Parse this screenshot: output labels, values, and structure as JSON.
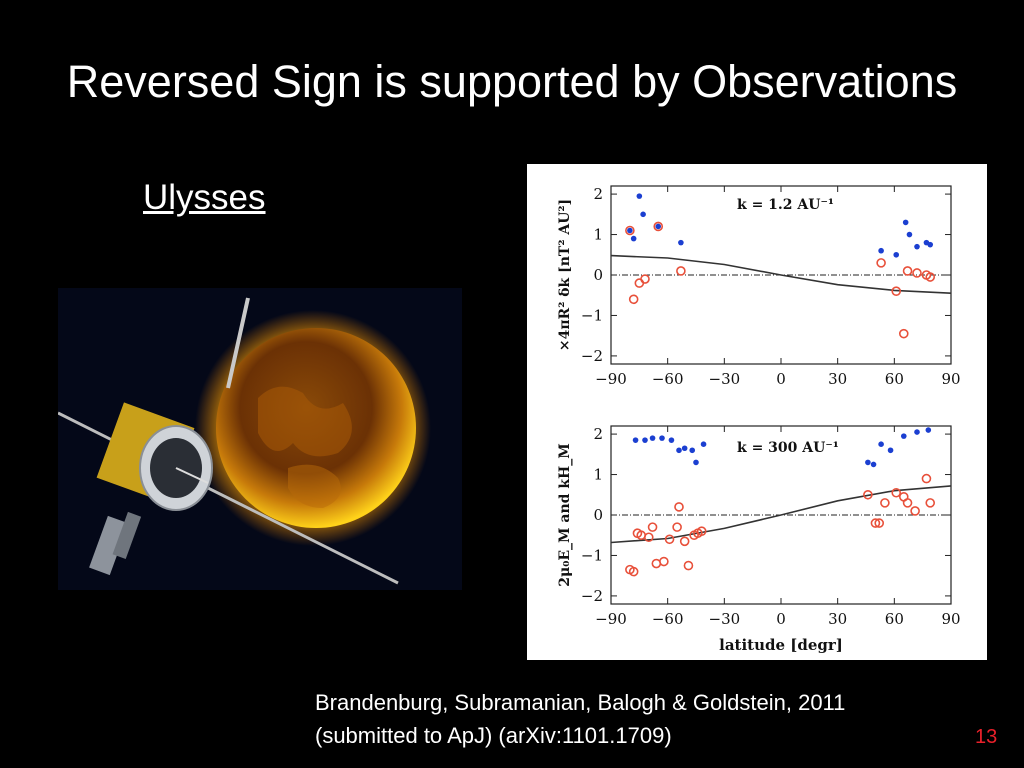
{
  "slide": {
    "title": "Reversed Sign is supported by Observations",
    "subtitle": "Ulysses",
    "citation_line1": "Brandenburg, Subramanian, Balogh & Goldstein, 2011",
    "citation_line2": "(submitted to ApJ) (arXiv:1101.1709)",
    "page_number": "13"
  },
  "image": {
    "description_icon": "ulysses-spacecraft-and-sun-icon"
  },
  "colors": {
    "filled": "#1b3fd1",
    "open": "#e8503a",
    "curve": "#333333"
  },
  "chart_data": [
    {
      "type": "scatter",
      "annotation": "k = 1.2 AU⁻¹",
      "ylabel": "×4πR² δk [nT² AU²]",
      "xlabel": "",
      "xlim": [
        -90,
        90
      ],
      "ylim": [
        -2.2,
        2.2
      ],
      "xticks": [
        "−90",
        "−60",
        "−30",
        "0",
        "30",
        "60",
        "90"
      ],
      "yticks": [
        "2",
        "1",
        "0",
        "−1",
        "−2"
      ],
      "filled_points": [
        [
          -80,
          1.1
        ],
        [
          -78,
          0.9
        ],
        [
          -75,
          1.95
        ],
        [
          -73,
          1.5
        ],
        [
          -65,
          1.2
        ],
        [
          -53,
          0.8
        ],
        [
          53,
          0.6
        ],
        [
          61,
          0.5
        ],
        [
          66,
          1.3
        ],
        [
          68,
          1.0
        ],
        [
          72,
          0.7
        ],
        [
          77,
          0.8
        ],
        [
          79,
          0.75
        ]
      ],
      "open_points": [
        [
          -80,
          1.1
        ],
        [
          -78,
          -0.6
        ],
        [
          -75,
          -0.2
        ],
        [
          -72,
          -0.1
        ],
        [
          -65,
          1.2
        ],
        [
          -53,
          0.1
        ],
        [
          53,
          0.3
        ],
        [
          61,
          -0.4
        ],
        [
          65,
          -1.45
        ],
        [
          67,
          0.1
        ],
        [
          72,
          0.05
        ],
        [
          77,
          0.0
        ],
        [
          79,
          -0.05
        ]
      ],
      "curve": [
        [
          -90,
          0.48
        ],
        [
          -60,
          0.42
        ],
        [
          -30,
          0.26
        ],
        [
          0,
          0.0
        ],
        [
          30,
          -0.24
        ],
        [
          60,
          -0.38
        ],
        [
          90,
          -0.45
        ]
      ]
    },
    {
      "type": "scatter",
      "annotation": "k = 300 AU⁻¹",
      "ylabel": "2μ₀E_M and kH_M",
      "xlabel": "latitude [degr]",
      "xlim": [
        -90,
        90
      ],
      "ylim": [
        -2.2,
        2.2
      ],
      "xticks": [
        "−90",
        "−60",
        "−30",
        "0",
        "30",
        "60",
        "90"
      ],
      "yticks": [
        "2",
        "1",
        "0",
        "−1",
        "−2"
      ],
      "filled_points": [
        [
          -77,
          1.85
        ],
        [
          -72,
          1.85
        ],
        [
          -68,
          1.9
        ],
        [
          -63,
          1.9
        ],
        [
          -58,
          1.85
        ],
        [
          -54,
          1.6
        ],
        [
          -51,
          1.65
        ],
        [
          -47,
          1.6
        ],
        [
          -45,
          1.3
        ],
        [
          -41,
          1.75
        ],
        [
          46,
          1.3
        ],
        [
          49,
          1.25
        ],
        [
          53,
          1.75
        ],
        [
          58,
          1.6
        ],
        [
          65,
          1.95
        ],
        [
          72,
          2.05
        ],
        [
          78,
          2.1
        ]
      ],
      "open_points": [
        [
          -80,
          -1.35
        ],
        [
          -78,
          -1.4
        ],
        [
          -76,
          -0.45
        ],
        [
          -74,
          -0.5
        ],
        [
          -70,
          -0.55
        ],
        [
          -68,
          -0.3
        ],
        [
          -66,
          -1.2
        ],
        [
          -62,
          -1.15
        ],
        [
          -59,
          -0.6
        ],
        [
          -55,
          -0.3
        ],
        [
          -54,
          0.2
        ],
        [
          -51,
          -0.65
        ],
        [
          -49,
          -1.25
        ],
        [
          -46,
          -0.5
        ],
        [
          -44,
          -0.45
        ],
        [
          -42,
          -0.4
        ],
        [
          46,
          0.5
        ],
        [
          50,
          -0.2
        ],
        [
          52,
          -0.2
        ],
        [
          55,
          0.3
        ],
        [
          61,
          0.55
        ],
        [
          65,
          0.45
        ],
        [
          67,
          0.3
        ],
        [
          71,
          0.1
        ],
        [
          77,
          0.9
        ],
        [
          79,
          0.3
        ]
      ],
      "curve": [
        [
          -90,
          -0.68
        ],
        [
          -60,
          -0.58
        ],
        [
          -30,
          -0.33
        ],
        [
          0,
          0.0
        ],
        [
          30,
          0.35
        ],
        [
          60,
          0.6
        ],
        [
          90,
          0.72
        ]
      ]
    }
  ]
}
